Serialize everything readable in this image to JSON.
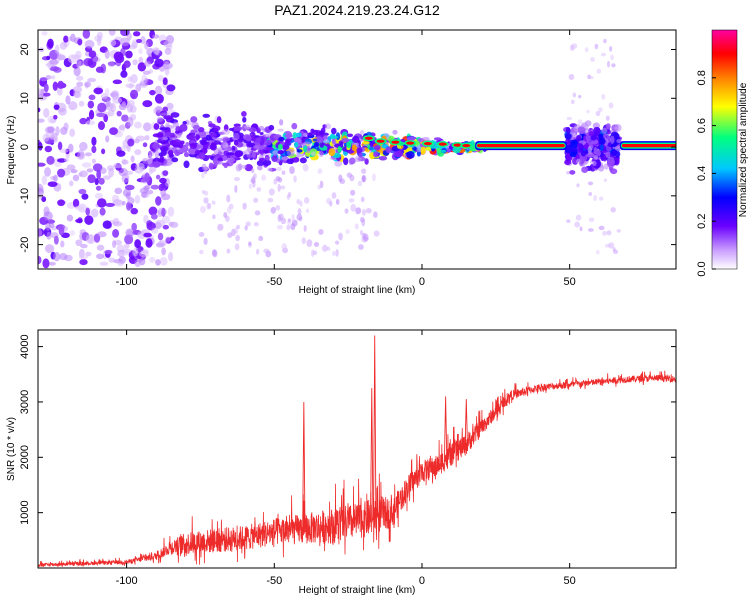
{
  "title": "PAZ1.2024.219.23.24.G12",
  "chart_data": [
    {
      "type": "heatmap",
      "xlabel": "Height of straight line (km)",
      "ylabel": "Frequency (Hz)",
      "xlim": [
        -130,
        86
      ],
      "ylim": [
        -25,
        24
      ],
      "xticks": [
        "-100",
        "-50",
        "0",
        "50"
      ],
      "yticks": [
        "20",
        "10",
        "0",
        "-10",
        "-20"
      ],
      "colorbar": {
        "label": "Normalized spectral amplitude",
        "range": [
          0,
          1
        ],
        "ticks": [
          "0.0",
          "0.2",
          "0.4",
          "0.6",
          "0.8"
        ],
        "colors": [
          "#ffffff",
          "#6a00ff",
          "#0000ff",
          "#00c8ff",
          "#00ff80",
          "#ffff00",
          "#ff8000",
          "#ff0000",
          "#ff00a0"
        ]
      },
      "features": {
        "noise_region_x": [
          -130,
          -90
        ],
        "noise_freq_spread_hz": 24,
        "signal_start_x": -90,
        "signal_line_start_x": 18,
        "signal_line_freq_hz": 0.3,
        "gap_region_x": [
          -2,
          49
        ],
        "second_band_x": [
          49,
          67
        ],
        "second_line_start_x": 67
      }
    },
    {
      "type": "line",
      "xlabel": "Height of straight line (km)",
      "ylabel": "SNR (10 * v/v)",
      "xlim": [
        -130,
        86
      ],
      "ylim": [
        0,
        4300
      ],
      "xticks": [
        "-100",
        "-50",
        "0",
        "50"
      ],
      "yticks": [
        "1000",
        "2000",
        "3000",
        "4000"
      ],
      "color": "#ee2b2b",
      "envelope": {
        "x": [
          -130,
          -100,
          -90,
          -85,
          -80,
          -70,
          -60,
          -50,
          -40,
          -30,
          -20,
          -15,
          -10,
          -5,
          0,
          5,
          10,
          15,
          20,
          25,
          30,
          40,
          50,
          60,
          70,
          80,
          86
        ],
        "y": [
          50,
          100,
          200,
          350,
          400,
          450,
          500,
          600,
          650,
          700,
          800,
          900,
          950,
          1400,
          1700,
          1800,
          2000,
          2200,
          2500,
          2800,
          3100,
          3250,
          3300,
          3350,
          3400,
          3420,
          3400
        ],
        "amp": [
          60,
          70,
          150,
          250,
          400,
          450,
          450,
          500,
          550,
          650,
          650,
          700,
          500,
          450,
          400,
          400,
          400,
          400,
          300,
          250,
          180,
          130,
          120,
          120,
          120,
          120,
          120
        ]
      },
      "spikes": [
        {
          "x": -16,
          "y": 4200
        },
        {
          "x": -40,
          "y": 3000
        },
        {
          "x": -17,
          "y": 3250
        },
        {
          "x": 8,
          "y": 3100
        },
        {
          "x": 15,
          "y": 3050
        }
      ]
    }
  ]
}
